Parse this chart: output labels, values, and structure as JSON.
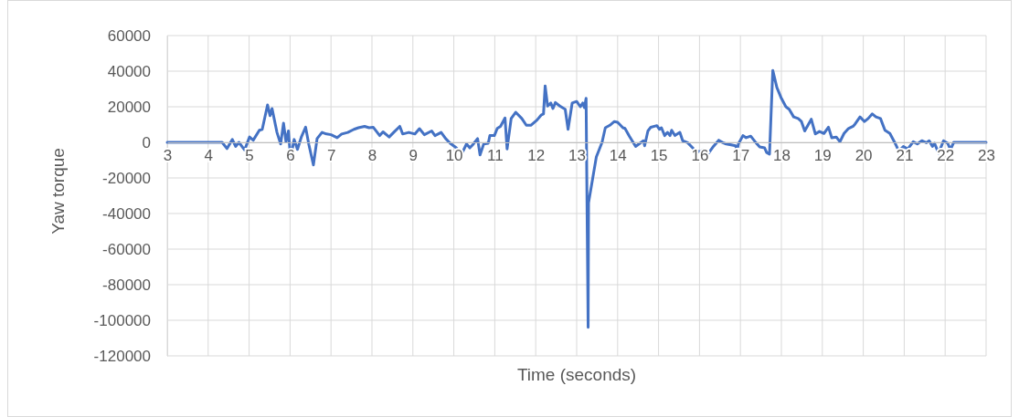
{
  "chart_data": {
    "type": "line",
    "xlabel": "Time (seconds)",
    "ylabel": "Yaw torque",
    "xlim": [
      3,
      23
    ],
    "xticks": [
      3,
      4,
      5,
      6,
      7,
      8,
      9,
      10,
      11,
      12,
      13,
      14,
      15,
      16,
      17,
      18,
      19,
      20,
      21,
      22,
      23
    ],
    "ylim": [
      -120000,
      60000
    ],
    "yticks": [
      -120000,
      -100000,
      -80000,
      -60000,
      -40000,
      -20000,
      0,
      20000,
      40000,
      60000
    ],
    "grid": true,
    "marker": "none",
    "line_style": "solid",
    "series": [
      {
        "color": "#4472c4",
        "x": [
          3,
          4.34,
          4.46,
          4.59,
          4.67,
          4.75,
          4.89,
          5.01,
          5.1,
          5.25,
          5.32,
          5.45,
          5.51,
          5.56,
          5.68,
          5.77,
          5.84,
          5.9,
          5.96,
          6.01,
          6.1,
          6.18,
          6.28,
          6.38,
          6.46,
          6.57,
          6.66,
          6.78,
          6.89,
          7,
          7.15,
          7.26,
          7.41,
          7.56,
          7.67,
          7.82,
          7.93,
          8.03,
          8.19,
          8.27,
          8.42,
          8.53,
          8.68,
          8.75,
          8.9,
          9.05,
          9.16,
          9.28,
          9.46,
          9.54,
          9.69,
          9.8,
          9.91,
          10.06,
          10.2,
          10.31,
          10.39,
          10.46,
          10.58,
          10.64,
          10.73,
          10.84,
          10.88,
          10.99,
          11.06,
          11.14,
          11.25,
          11.3,
          11.4,
          11.51,
          11.66,
          11.77,
          11.88,
          12.03,
          12.14,
          12.19,
          12.23,
          12.29,
          12.37,
          12.42,
          12.48,
          12.59,
          12.72,
          12.79,
          12.89,
          13,
          13.09,
          13.15,
          13.19,
          13.23,
          13.28,
          13.29,
          13.48,
          13.62,
          13.7,
          13.81,
          13.92,
          14,
          14.13,
          14.18,
          14.29,
          14.44,
          14.63,
          14.66,
          14.74,
          14.81,
          14.96,
          15.02,
          15.07,
          15.15,
          15.22,
          15.28,
          15.32,
          15.4,
          15.52,
          15.59,
          15.71,
          15.86,
          16.01,
          16.08,
          16.22,
          16.34,
          16.47,
          16.57,
          16.65,
          16.77,
          16.88,
          16.92,
          16.95,
          17.06,
          17.14,
          17.25,
          17.36,
          17.47,
          17.59,
          17.64,
          17.71,
          17.79,
          17.89,
          18,
          18.11,
          18.19,
          18.3,
          18.41,
          18.49,
          18.57,
          18.73,
          18.83,
          18.93,
          19.04,
          19.15,
          19.23,
          19.34,
          19.43,
          19.53,
          19.64,
          19.75,
          19.8,
          19.92,
          20.03,
          20.12,
          20.22,
          20.31,
          20.42,
          20.53,
          20.65,
          20.76,
          20.87,
          20.98,
          21.09,
          21.22,
          21.32,
          21.43,
          21.54,
          21.61,
          21.69,
          21.74,
          21.84,
          21.96,
          22.06,
          22.13,
          22.21,
          23
        ],
        "values": [
          0,
          0,
          -3500,
          1600,
          -2300,
          0,
          -4300,
          3000,
          1200,
          6800,
          7300,
          21000,
          15000,
          19000,
          5600,
          -900,
          10800,
          300,
          6400,
          -8900,
          1600,
          -4000,
          3300,
          8500,
          -1400,
          -12700,
          2100,
          5600,
          4700,
          4300,
          2600,
          4700,
          5600,
          7300,
          8200,
          9000,
          8200,
          8500,
          3800,
          5900,
          3000,
          5600,
          9000,
          4700,
          5600,
          4700,
          7700,
          4300,
          6400,
          3800,
          5600,
          2100,
          -500,
          -3100,
          -6100,
          -900,
          -3100,
          -1400,
          2100,
          -7100,
          -900,
          -500,
          3800,
          3800,
          7800,
          9000,
          13700,
          -3700,
          13400,
          16900,
          13400,
          9600,
          9600,
          12500,
          15500,
          16000,
          31700,
          20400,
          22100,
          19000,
          22400,
          20400,
          18600,
          7300,
          22100,
          23000,
          20000,
          22100,
          19500,
          24700,
          -104000,
          -34000,
          -8200,
          0,
          8200,
          9600,
          11700,
          11300,
          8200,
          7800,
          3300,
          -2300,
          900,
          -1900,
          6400,
          8500,
          9400,
          7300,
          8200,
          3800,
          5600,
          3800,
          6800,
          3800,
          5600,
          900,
          -200,
          -3700,
          -5400,
          -4300,
          -6100,
          -2300,
          1200,
          -200,
          -900,
          -1400,
          -1900,
          -4900,
          -900,
          3800,
          2600,
          3500,
          300,
          -2600,
          -3100,
          -5700,
          -6600,
          40400,
          30800,
          24700,
          20000,
          18600,
          14300,
          13400,
          11700,
          6400,
          13000,
          4700,
          6100,
          5000,
          8500,
          2600,
          3000,
          300,
          5000,
          7800,
          9000,
          10300,
          14300,
          11700,
          13400,
          16000,
          14300,
          13400,
          6800,
          5000,
          300,
          -4900,
          -2300,
          -3700,
          300,
          -900,
          900,
          -200,
          900,
          -2300,
          -500,
          -6100,
          900,
          -500,
          -4000,
          0,
          0
        ]
      }
    ]
  }
}
